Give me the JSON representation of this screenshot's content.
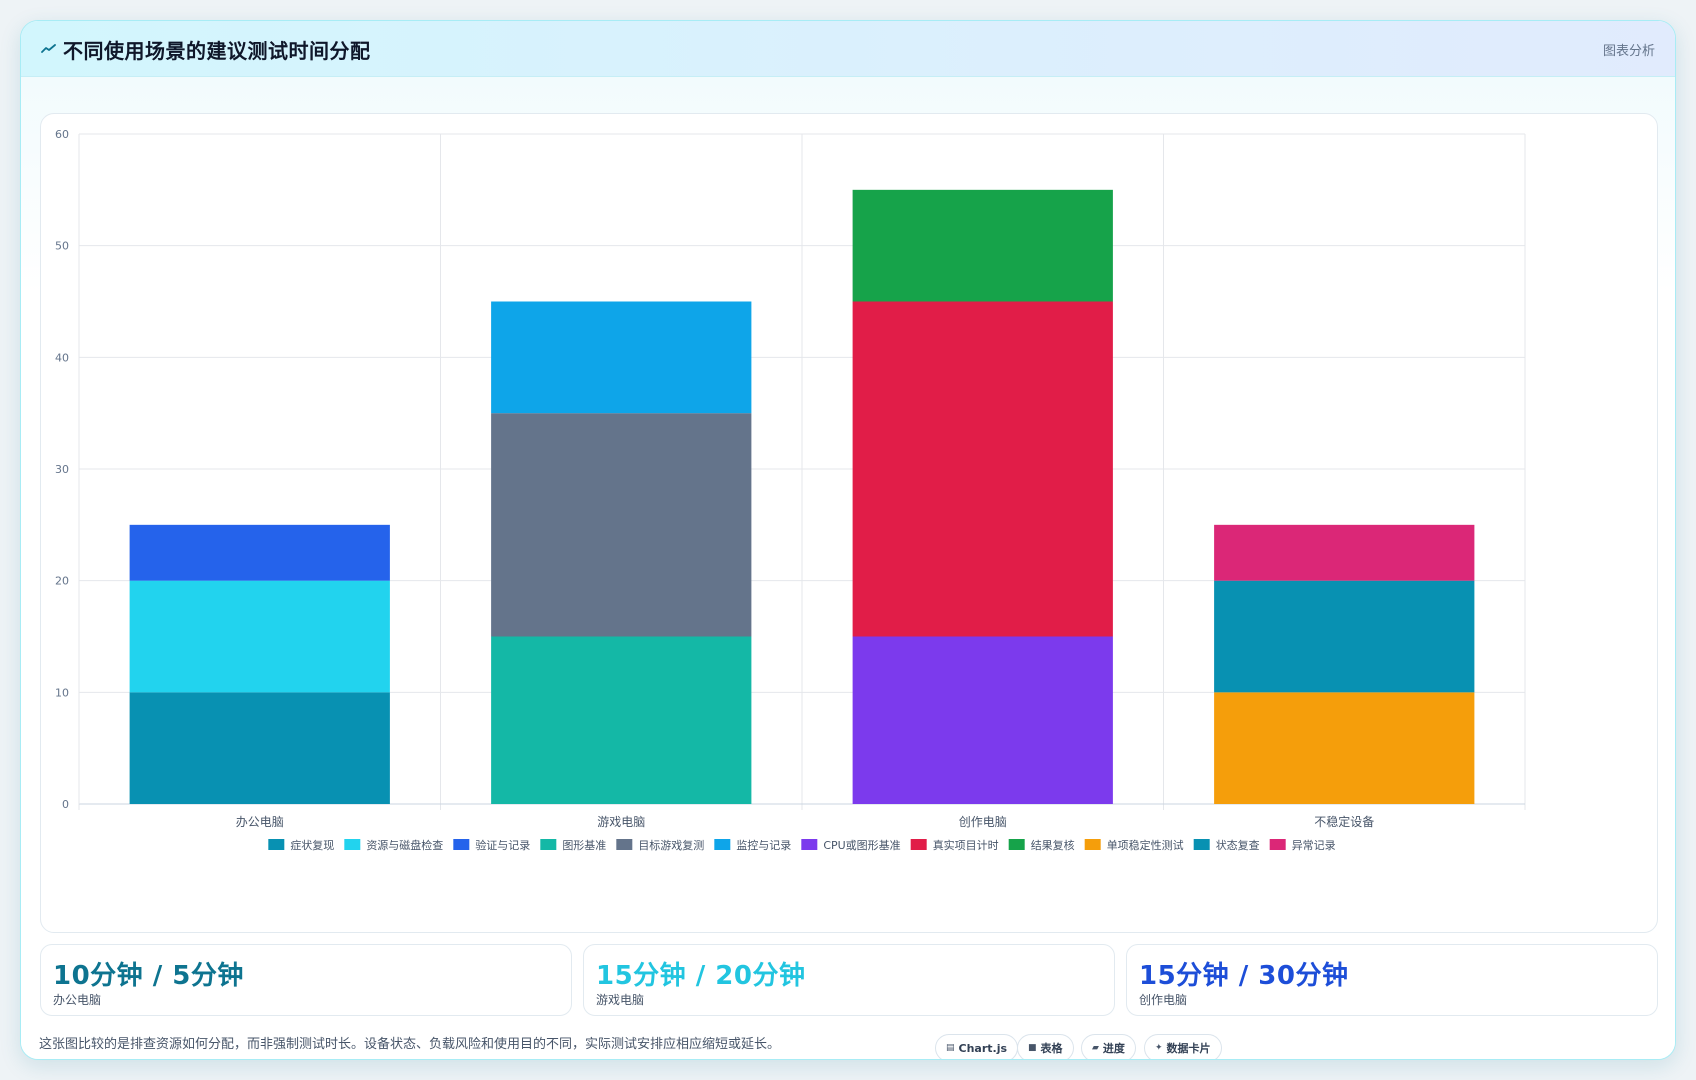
{
  "header": {
    "title": "不同使用场景的建议测试时间分配",
    "tag": "图表分析"
  },
  "chart_data": {
    "type": "bar",
    "stacked": true,
    "categories": [
      "办公电脑",
      "游戏电脑",
      "创作电脑",
      "不稳定设备"
    ],
    "ylim": [
      0,
      60
    ],
    "yticks": [
      0,
      10,
      20,
      30,
      40,
      50,
      60
    ],
    "grid": true,
    "legend_position": "bottom",
    "series": [
      {
        "name": "症状复现",
        "color": "#0891b2",
        "values": [
          10,
          0,
          0,
          0
        ]
      },
      {
        "name": "资源与磁盘检查",
        "color": "#22d3ee",
        "values": [
          10,
          0,
          0,
          0
        ]
      },
      {
        "name": "验证与记录",
        "color": "#2563eb",
        "values": [
          5,
          0,
          0,
          0
        ]
      },
      {
        "name": "图形基准",
        "color": "#14b8a6",
        "values": [
          0,
          15,
          0,
          0
        ]
      },
      {
        "name": "目标游戏复测",
        "color": "#64748b",
        "values": [
          0,
          20,
          0,
          0
        ]
      },
      {
        "name": "监控与记录",
        "color": "#0ea5e9",
        "values": [
          0,
          10,
          0,
          0
        ]
      },
      {
        "name": "CPU或图形基准",
        "color": "#7c3aed",
        "values": [
          0,
          0,
          15,
          0
        ]
      },
      {
        "name": "真实项目计时",
        "color": "#e11d48",
        "values": [
          0,
          0,
          30,
          0
        ]
      },
      {
        "name": "结果复核",
        "color": "#16a34a",
        "values": [
          0,
          0,
          10,
          0
        ]
      },
      {
        "name": "单项稳定性测试",
        "color": "#f59e0b",
        "values": [
          0,
          0,
          0,
          10
        ]
      },
      {
        "name": "状态复查",
        "color": "#0891b2",
        "values": [
          0,
          0,
          0,
          10
        ]
      },
      {
        "name": "异常记录",
        "color": "#db2777",
        "values": [
          0,
          0,
          0,
          5
        ]
      }
    ]
  },
  "stats": [
    {
      "value": "10分钟 / 5分钟",
      "label": "办公电脑",
      "color": "#0e7490"
    },
    {
      "value": "15分钟 / 20分钟",
      "label": "游戏电脑",
      "color": "#22c5e0"
    },
    {
      "value": "15分钟 / 30分钟",
      "label": "创作电脑",
      "color": "#1d4ed8"
    }
  ],
  "footer": {
    "note": "这张图比较的是排查资源如何分配，而非强制测试时长。设备状态、负载风险和使用目的不同，实际测试安排应相应缩短或延长。",
    "chips": [
      {
        "icon": "▤",
        "label": "Chart.js"
      },
      {
        "icon": "■",
        "label": "表格"
      },
      {
        "icon": "▰",
        "label": "进度"
      },
      {
        "icon": "✦",
        "label": "数据卡片"
      }
    ]
  }
}
